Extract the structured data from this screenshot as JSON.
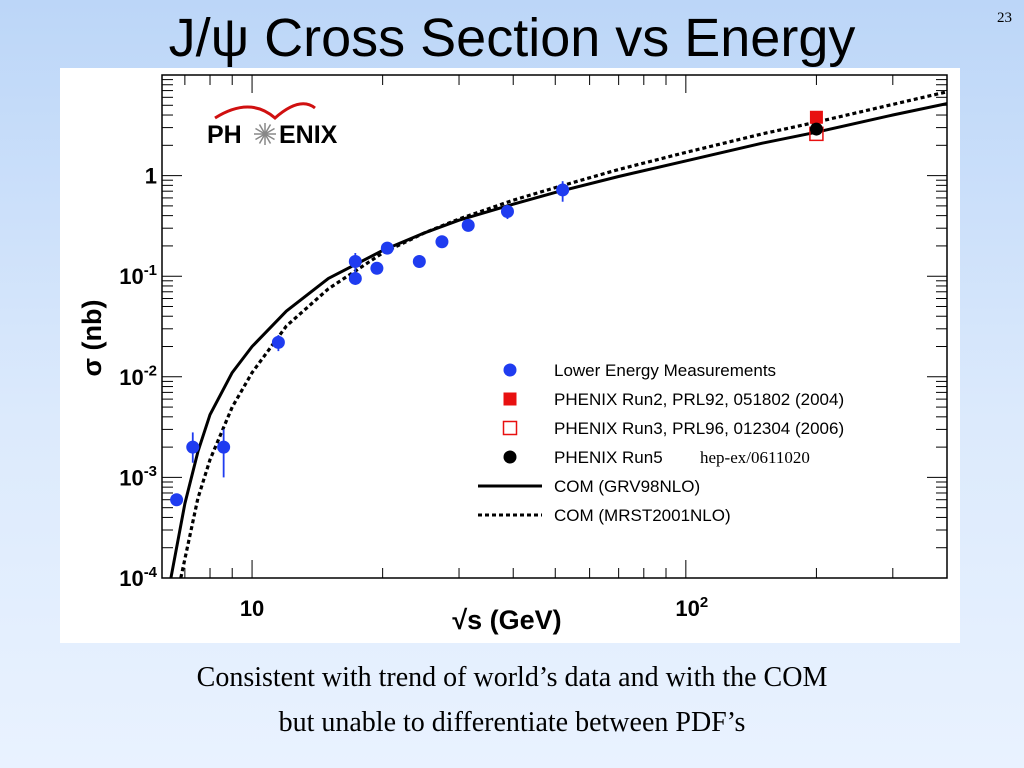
{
  "slide": {
    "title": "J/ψ Cross Section vs Energy",
    "number": "23",
    "caption_line1": "Consistent with trend of world’s data and with the COM",
    "caption_line2": "but unable to differentiate between PDF’s"
  },
  "logo": {
    "text_left": "PH",
    "text_right": "ENIX",
    "arc_color": "#d01010",
    "sunburst_color": "#888888"
  },
  "chart_data": {
    "type": "scatter",
    "xscale": "log",
    "yscale": "log",
    "xlim": [
      6.2,
      400
    ],
    "ylim": [
      0.0001,
      10
    ],
    "xlabel": "√s (GeV)",
    "ylabel": "σ (nb)",
    "xticks": [
      {
        "value": 10,
        "base": "10",
        "exp": ""
      },
      {
        "value": 100,
        "base": "10",
        "exp": "2"
      }
    ],
    "yticks": [
      {
        "value": 1,
        "base": "1",
        "exp": ""
      },
      {
        "value": 0.1,
        "base": "10",
        "exp": "-1"
      },
      {
        "value": 0.01,
        "base": "10",
        "exp": "-2"
      },
      {
        "value": 0.001,
        "base": "10",
        "exp": "-3"
      },
      {
        "value": 0.0001,
        "base": "10",
        "exp": "-4"
      }
    ],
    "legend_position": "lower-right",
    "series": [
      {
        "name": "Lower Energy Measurements",
        "marker": "filled-circle",
        "color": "#1f3cf0",
        "points": [
          {
            "x": 6.7,
            "y": 0.0006
          },
          {
            "x": 7.3,
            "y": 0.002,
            "ylo": 0.0014,
            "yhi": 0.0028
          },
          {
            "x": 8.6,
            "y": 0.002,
            "ylo": 0.001,
            "yhi": 0.003
          },
          {
            "x": 11.5,
            "y": 0.022,
            "ylo": 0.018,
            "yhi": 0.026
          },
          {
            "x": 17.3,
            "y": 0.14,
            "ylo": 0.11,
            "yhi": 0.17
          },
          {
            "x": 17.3,
            "y": 0.095
          },
          {
            "x": 19.4,
            "y": 0.12
          },
          {
            "x": 20.5,
            "y": 0.19
          },
          {
            "x": 24.3,
            "y": 0.14
          },
          {
            "x": 27.4,
            "y": 0.22
          },
          {
            "x": 31.5,
            "y": 0.32
          },
          {
            "x": 38.8,
            "y": 0.44,
            "ylo": 0.37,
            "yhi": 0.51
          },
          {
            "x": 52,
            "y": 0.72,
            "ylo": 0.55,
            "yhi": 0.88
          }
        ]
      },
      {
        "name": "PHENIX Run2, PRL92, 051802 (2004)",
        "marker": "filled-square",
        "color": "#e81010",
        "points": [
          {
            "x": 200,
            "y": 3.8
          }
        ]
      },
      {
        "name": "PHENIX Run3, PRL96, 012304 (2006)",
        "marker": "open-square",
        "color": "#e81010",
        "points": [
          {
            "x": 200,
            "y": 2.6
          }
        ]
      },
      {
        "name": "PHENIX Run5",
        "name_suffix": "hep-ex/0611020",
        "marker": "filled-circle",
        "color": "#000000",
        "points": [
          {
            "x": 200,
            "y": 2.9
          }
        ]
      },
      {
        "name": "COM (GRV98NLO)",
        "line": "solid",
        "color": "#000000",
        "points": [
          {
            "x": 6.5,
            "y": 0.0001
          },
          {
            "x": 7.0,
            "y": 0.00055
          },
          {
            "x": 7.5,
            "y": 0.0018
          },
          {
            "x": 8.0,
            "y": 0.0042
          },
          {
            "x": 9.0,
            "y": 0.011
          },
          {
            "x": 10.0,
            "y": 0.02
          },
          {
            "x": 12.0,
            "y": 0.045
          },
          {
            "x": 15.0,
            "y": 0.095
          },
          {
            "x": 20.0,
            "y": 0.18
          },
          {
            "x": 25.0,
            "y": 0.27
          },
          {
            "x": 30.0,
            "y": 0.36
          },
          {
            "x": 40.0,
            "y": 0.52
          },
          {
            "x": 50.0,
            "y": 0.68
          },
          {
            "x": 70.0,
            "y": 0.98
          },
          {
            "x": 100.0,
            "y": 1.4
          },
          {
            "x": 150.0,
            "y": 2.1
          },
          {
            "x": 200.0,
            "y": 2.7
          },
          {
            "x": 300.0,
            "y": 4.0
          },
          {
            "x": 400.0,
            "y": 5.2
          }
        ]
      },
      {
        "name": "COM (MRST2001NLO)",
        "line": "dotted",
        "color": "#000000",
        "points": [
          {
            "x": 6.85,
            "y": 0.0001
          },
          {
            "x": 7.5,
            "y": 0.00062
          },
          {
            "x": 8.0,
            "y": 0.0015
          },
          {
            "x": 9.0,
            "y": 0.005
          },
          {
            "x": 10.0,
            "y": 0.011
          },
          {
            "x": 12.0,
            "y": 0.032
          },
          {
            "x": 15.0,
            "y": 0.075
          },
          {
            "x": 20.0,
            "y": 0.17
          },
          {
            "x": 25.0,
            "y": 0.27
          },
          {
            "x": 30.0,
            "y": 0.37
          },
          {
            "x": 40.0,
            "y": 0.57
          },
          {
            "x": 50.0,
            "y": 0.76
          },
          {
            "x": 70.0,
            "y": 1.15
          },
          {
            "x": 100.0,
            "y": 1.7
          },
          {
            "x": 150.0,
            "y": 2.6
          },
          {
            "x": 200.0,
            "y": 3.4
          },
          {
            "x": 300.0,
            "y": 5.1
          },
          {
            "x": 400.0,
            "y": 6.8
          }
        ]
      }
    ]
  }
}
